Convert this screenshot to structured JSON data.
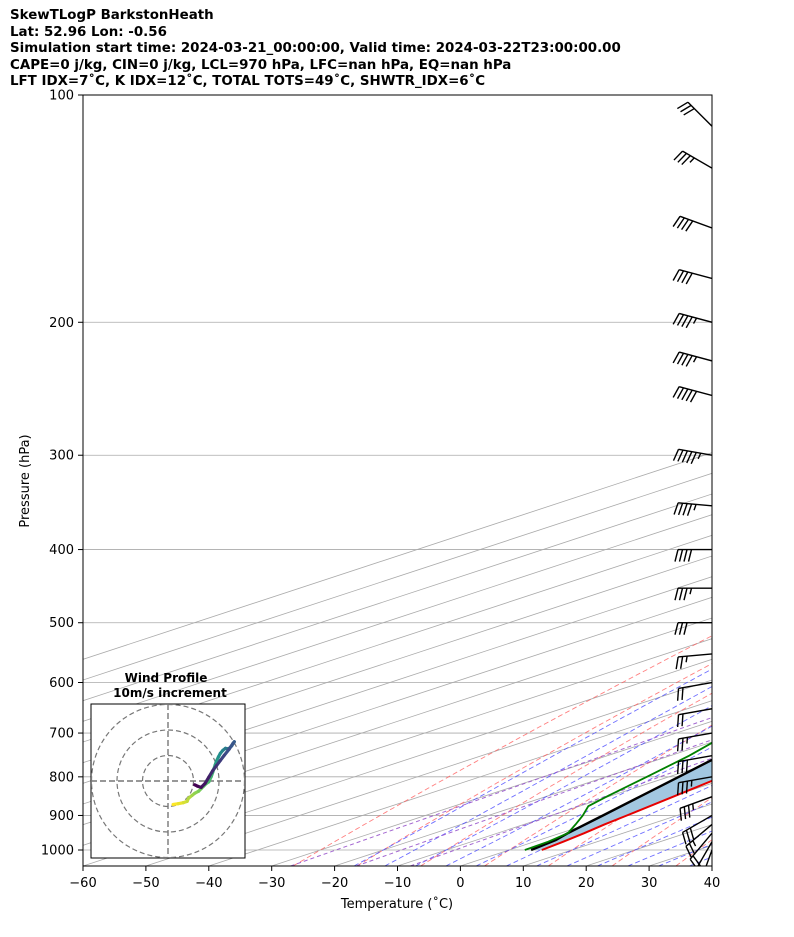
{
  "header": {
    "line1": "SkewTLogP BarkstonHeath",
    "line2": "Lat: 52.96   Lon: -0.56",
    "line3": "Simulation start time: 2024-03-21_00:00:00, Valid time: 2024-03-22T23:00:00.00",
    "line4": "CAPE=0 j/kg, CIN=0 j/kg, LCL=970 hPa, LFC=nan hPa, EQ=nan hPa",
    "line5": "LFT IDX=7˚C, K IDX=12˚C, TOTAL TOTS=49˚C, SHWTR_IDX=6˚C"
  },
  "chart_data": {
    "type": "skewt",
    "xlabel": "Temperature (˚C)",
    "ylabel": "Pressure (hPa)",
    "xlim": [
      -60,
      40
    ],
    "ylim": [
      1050,
      100
    ],
    "y_scale": "log",
    "x_ticks": [
      -60,
      -50,
      -40,
      -30,
      -20,
      -10,
      0,
      10,
      20,
      30,
      40
    ],
    "y_ticks": [
      1000,
      900,
      800,
      700,
      600,
      500,
      400,
      300,
      200,
      100
    ],
    "grid": true,
    "colors": {
      "temperature": "#e60000",
      "dewpoint": "#008000",
      "parcel": "#000000",
      "cape_fill": "#a2c7e0",
      "dry_adiabats": "#ff5555",
      "moist_adiabats": "#3f3fff",
      "mixing_ratio": "#9955cc",
      "isotherms": "#aaaaaa"
    },
    "temperature": {
      "pressure": [
        1000,
        975,
        950,
        925,
        900,
        850,
        800,
        750,
        700,
        650,
        600,
        550,
        500,
        450,
        400,
        350,
        300,
        250,
        225,
        200,
        175,
        150,
        125,
        110,
        100
      ],
      "values": [
        5.2,
        4.6,
        3.8,
        2.8,
        2.0,
        0.3,
        -1.6,
        -3.6,
        -5.9,
        -7.8,
        -8.6,
        -9.9,
        -11.4,
        -13.9,
        -17.3,
        -18.2,
        -16.9,
        -14.0,
        -12.5,
        -12.5,
        -13.8,
        -17.8,
        -23.2,
        -27.1,
        -29.5
      ]
    },
    "dewpoint": {
      "pressure": [
        1000,
        975,
        950,
        925,
        900,
        875,
        850,
        800,
        750,
        700,
        650,
        600,
        550,
        525,
        500,
        450,
        400,
        350,
        300,
        250,
        225,
        200,
        175,
        150,
        125,
        100
      ],
      "values": [
        2.5,
        2.2,
        1.2,
        -1.8,
        -5.0,
        -8.6,
        -10.3,
        -13.5,
        -17.0,
        -21.6,
        -28.9,
        -42.5,
        -52.0,
        -53.4,
        -52.0,
        -44.5,
        -41.5,
        -44.0,
        -47.0,
        -51.0,
        -53.0,
        -50.0,
        -49.5,
        -50.6,
        -49.0,
        -50.0
      ]
    },
    "parcel": {
      "pressure": [
        1000,
        970,
        950,
        900,
        850,
        800,
        750,
        700,
        650,
        600,
        550,
        500,
        450,
        400,
        350,
        300,
        250,
        200,
        150,
        100
      ],
      "values": [
        3.5,
        2.6,
        1.2,
        -1.8,
        -5.0,
        -8.4,
        -12.1,
        -16.1,
        -20.5,
        -25.3,
        -30.7,
        -36.7,
        -43.5,
        -51.2,
        -59.9,
        -69.6,
        -80.6,
        -93.0,
        -107.2,
        -123.8
      ]
    },
    "wind_barbs": {
      "pressure": [
        1000,
        975,
        950,
        925,
        900,
        850,
        800,
        750,
        700,
        650,
        600,
        550,
        500,
        450,
        400,
        350,
        300,
        250,
        225,
        200,
        175,
        150,
        125,
        110,
        100
      ],
      "speed_kt": [
        10,
        15,
        20,
        25,
        30,
        35,
        35,
        30,
        25,
        20,
        20,
        25,
        30,
        35,
        40,
        45,
        55,
        50,
        45,
        45,
        40,
        40,
        35,
        30,
        25
      ],
      "direction_deg": [
        200,
        210,
        220,
        230,
        240,
        250,
        260,
        260,
        260,
        260,
        260,
        265,
        270,
        270,
        270,
        275,
        280,
        285,
        285,
        285,
        285,
        290,
        300,
        315,
        330
      ]
    },
    "hodograph": {
      "title": "Wind Profile",
      "subtitle": "10m/s increment",
      "ring_step_ms": 10,
      "u_ms": [
        2,
        4,
        6,
        7.5,
        8,
        9.5,
        10.5,
        12,
        13,
        14,
        15,
        16,
        17,
        17.5,
        18,
        18.5,
        19,
        19.8,
        20.5,
        21.5,
        22.5,
        23.5,
        24,
        25,
        26,
        25.5,
        24,
        22,
        20.5,
        19,
        17.5,
        16,
        14.5,
        13,
        11.5,
        10.5
      ],
      "v_ms": [
        -9.2,
        -8.9,
        -8.5,
        -8.0,
        -6.8,
        -5.6,
        -4.8,
        -4.0,
        -3.0,
        -2.0,
        -1.0,
        -0.3,
        1.8,
        3.3,
        4.8,
        6.3,
        7.8,
        9.5,
        10.8,
        12.0,
        12.8,
        12.6,
        12.8,
        13.8,
        15.4,
        14.8,
        12.5,
        10.0,
        8.0,
        6.0,
        4.0,
        1.5,
        -1.0,
        -2.5,
        -2.0,
        -1.5
      ]
    }
  }
}
